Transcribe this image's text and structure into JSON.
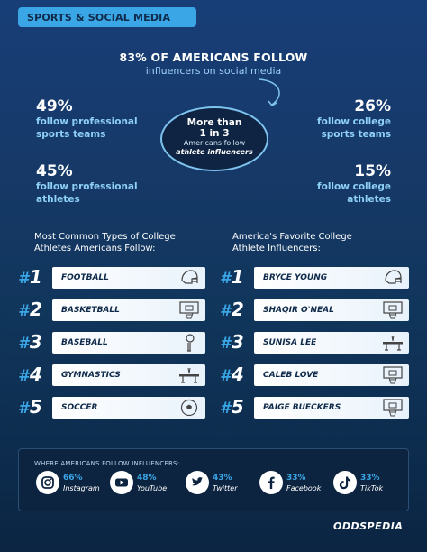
{
  "header": {
    "title": "SPORTS & SOCIAL MEDIA"
  },
  "headline": {
    "main": "83% OF AMERICANS FOLLOW",
    "sub": "influencers on social media"
  },
  "stats": {
    "pro_teams": {
      "pct": "49%",
      "line1": "follow professional",
      "line2": "sports teams",
      "value": 49
    },
    "college_teams": {
      "pct": "26%",
      "line1": "follow college",
      "line2": "sports teams",
      "value": 26
    },
    "pro_athletes": {
      "pct": "45%",
      "line1": "follow professional",
      "line2": "athletes",
      "value": 45
    },
    "college_athletes": {
      "pct": "15%",
      "line1": "follow college",
      "line2": "athletes",
      "value": 15
    }
  },
  "circle": {
    "line1": "More than",
    "line2": "1 in 3",
    "line3": "Americans follow",
    "line4": "athlete influencers"
  },
  "left_column": {
    "title_line1": "Most Common Types of College",
    "title_line2": "Athletes Americans Follow:",
    "items": [
      {
        "rank": "1",
        "label": "FOOTBALL",
        "icon": "football-helmet-icon"
      },
      {
        "rank": "2",
        "label": "BASKETBALL",
        "icon": "basketball-hoop-icon"
      },
      {
        "rank": "3",
        "label": "BASEBALL",
        "icon": "baseball-bat-icon"
      },
      {
        "rank": "4",
        "label": "GYMNASTICS",
        "icon": "balance-beam-icon"
      },
      {
        "rank": "5",
        "label": "SOCCER",
        "icon": "soccer-ball-icon"
      }
    ]
  },
  "right_column": {
    "title_line1": "America's Favorite College",
    "title_line2": "Athlete Influencers:",
    "items": [
      {
        "rank": "1",
        "label": "BRYCE YOUNG",
        "icon": "football-helmet-icon"
      },
      {
        "rank": "2",
        "label": "SHAQIR O'NEAL",
        "icon": "basketball-hoop-icon"
      },
      {
        "rank": "3",
        "label": "SUNISA LEE",
        "icon": "balance-beam-icon"
      },
      {
        "rank": "4",
        "label": "CALEB LOVE",
        "icon": "basketball-hoop-icon"
      },
      {
        "rank": "5",
        "label": "PAIGE BUECKERS",
        "icon": "basketball-hoop-icon"
      }
    ]
  },
  "footer": {
    "title": "WHERE AMERICANS FOLLOW INFLUENCERS:",
    "platforms": [
      {
        "pct": "66%",
        "name": "Instagram",
        "icon": "instagram-icon"
      },
      {
        "pct": "48%",
        "name": "YouTube",
        "icon": "youtube-icon"
      },
      {
        "pct": "43%",
        "name": "Twitter",
        "icon": "twitter-icon"
      },
      {
        "pct": "33%",
        "name": "Facebook",
        "icon": "facebook-icon"
      },
      {
        "pct": "33%",
        "name": "TikTok",
        "icon": "tiktok-icon"
      }
    ]
  },
  "brand": {
    "logo_text": "ODDSPEDIA"
  },
  "colors": {
    "accent": "#3aa6e6",
    "light_text": "#8ed0f8",
    "background_top": "#183e78",
    "background_bottom": "#0b2542"
  }
}
